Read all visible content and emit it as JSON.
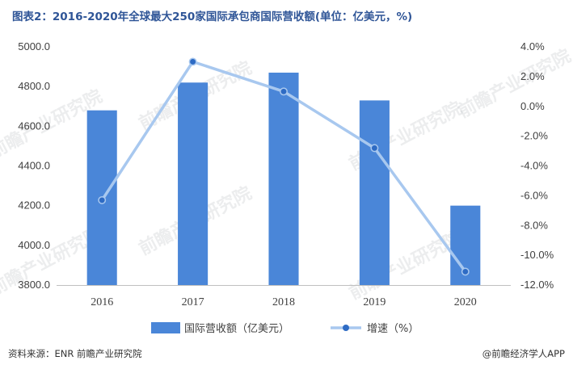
{
  "header": {
    "title": "图表2：2016-2020年全球最大250家国际承包商国际营收额(单位：亿美元，%)"
  },
  "chart_data": {
    "type": "bar+line",
    "categories": [
      "2016",
      "2017",
      "2018",
      "2019",
      "2020"
    ],
    "series": [
      {
        "name": "国际营收额（亿美元）",
        "type": "bar",
        "axis": "left",
        "values": [
          4680,
          4820,
          4870,
          4730,
          4200
        ],
        "color": "#4a86d8"
      },
      {
        "name": "增速（%）",
        "type": "line",
        "axis": "right",
        "values": [
          -6.3,
          3.0,
          1.0,
          -2.8,
          -11.1
        ],
        "color": "#a8c8ef",
        "marker_color": "#2e6bc4"
      }
    ],
    "y_left": {
      "min": 3800,
      "max": 5000,
      "step": 200,
      "tick_labels": [
        "3800.0",
        "4000.0",
        "4200.0",
        "4400.0",
        "4600.0",
        "4800.0",
        "5000.0"
      ]
    },
    "y_right": {
      "min": -12,
      "max": 4,
      "step": 2,
      "tick_labels": [
        "-12.0%",
        "-10.0%",
        "-8.0%",
        "-6.0%",
        "-4.0%",
        "-2.0%",
        "0.0%",
        "2.0%",
        "4.0%"
      ]
    },
    "legend_position": "bottom",
    "grid": false
  },
  "watermark": {
    "text": "前瞻产业研究院"
  },
  "footer": {
    "source": "资料来源：ENR 前瞻产业研究院",
    "brand": "@前瞻经济学人APP"
  }
}
